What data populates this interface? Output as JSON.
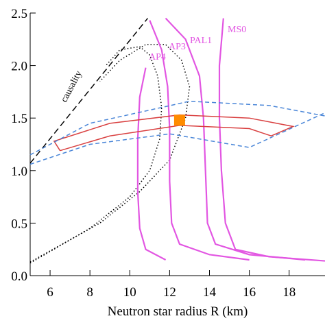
{
  "chart_data": {
    "type": "line",
    "xlabel": "Neutron star radius R (km)",
    "xlim": [
      5,
      19.8
    ],
    "ylim": [
      0,
      2.5
    ],
    "xticks": [
      6,
      8,
      10,
      12,
      14,
      16,
      18
    ],
    "yticks": [
      {
        "value": 0,
        "label": "0.0"
      },
      0.5,
      {
        "value": 1,
        "label": "1.0"
      },
      1.5,
      {
        "value": 2,
        "label": "2.0"
      },
      2.5
    ],
    "annotations": [
      "causality",
      "AP4",
      "AP3",
      "PAL1",
      "MS0"
    ],
    "series": [
      {
        "color": "#000000",
        "dash": "9,5",
        "x": [
          5,
          10.9
        ],
        "values": [
          1.07,
          2.45
        ]
      },
      {
        "color": "#000000",
        "dash": "1.5,3",
        "x": [
          5,
          8,
          10,
          11,
          11.5,
          11.6,
          11.4,
          11,
          10.5,
          9.5,
          8.8
        ],
        "values": [
          0.12,
          0.45,
          0.75,
          1.0,
          1.3,
          1.6,
          1.9,
          2.1,
          2.18,
          2.15,
          2.0
        ]
      },
      {
        "color": "#000000",
        "dash": "1.5,3",
        "x": [
          5,
          8.5,
          10.5,
          12,
          12.8,
          13,
          12.6,
          11.8,
          10.8,
          9.5,
          8.5
        ],
        "values": [
          0.13,
          0.5,
          0.8,
          1.1,
          1.5,
          1.8,
          2.05,
          2.2,
          2.2,
          2.05,
          1.85
        ]
      },
      {
        "color": "#e256e2",
        "x": [
          10.8,
          10.5,
          10.4,
          10.4,
          10.5,
          10.8,
          11.8
        ],
        "values": [
          1.98,
          1.7,
          1.3,
          0.8,
          0.45,
          0.25,
          0.15
        ]
      },
      {
        "color": "#e256e2",
        "x": [
          11,
          11.6,
          11.9,
          12,
          12,
          12.1,
          12.5,
          14,
          16
        ],
        "values": [
          2.43,
          2.15,
          1.8,
          1.4,
          0.9,
          0.5,
          0.3,
          0.2,
          0.15
        ]
      },
      {
        "color": "#e256e2",
        "x": [
          11.8,
          12.8,
          13.5,
          13.7,
          13.8,
          13.9,
          14.3,
          16,
          18.8
        ],
        "values": [
          2.45,
          2.25,
          1.9,
          1.5,
          1.0,
          0.5,
          0.3,
          0.2,
          0.15
        ]
      },
      {
        "color": "#e256e2",
        "x": [
          14.7,
          14.5,
          14.5,
          14.6,
          14.8,
          15.3,
          17,
          19.8
        ],
        "values": [
          2.45,
          2.0,
          1.5,
          1.0,
          0.5,
          0.25,
          0.18,
          0.14
        ]
      },
      {
        "color": "#d94040",
        "x": [
          6.5,
          9,
          12.5,
          16,
          17.1,
          18.2,
          16,
          12.5,
          9,
          6.2,
          6.5
        ],
        "values": [
          1.19,
          1.33,
          1.43,
          1.4,
          1.33,
          1.42,
          1.5,
          1.53,
          1.45,
          1.28,
          1.19
        ]
      },
      {
        "color": "#4a86d8",
        "dash": "6,4",
        "x": [
          5,
          8,
          13,
          17,
          19.8
        ],
        "values": [
          1.15,
          1.45,
          1.66,
          1.62,
          1.52
        ]
      },
      {
        "color": "#4a86d8",
        "dash": "6,4",
        "x": [
          5,
          8,
          12,
          16,
          19.8
        ],
        "values": [
          1.06,
          1.25,
          1.35,
          1.22,
          1.55
        ]
      }
    ],
    "point": {
      "color": "#ff8c00",
      "x": 12.5,
      "y": 1.48
    }
  }
}
